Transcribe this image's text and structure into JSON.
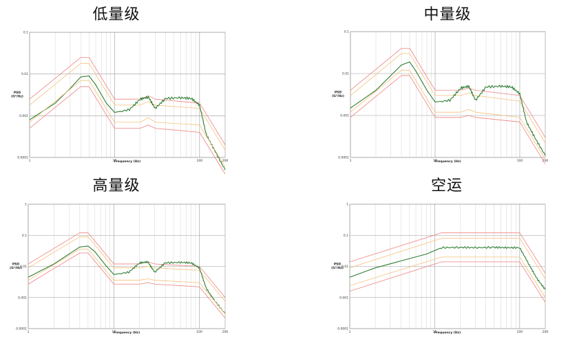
{
  "chart_data": [
    {
      "type": "line",
      "title": "低量级",
      "xlabel": "Frequency (Hz)",
      "ylabel": [
        "PSD",
        "(G²/Hz)"
      ],
      "x_scale": "log",
      "y_scale": "log",
      "xlim": [
        1,
        200
      ],
      "ylim": [
        0.0001,
        0.1
      ],
      "xtick_labels": [
        "1",
        "10",
        "100",
        "200"
      ],
      "ytick_labels": [
        "0.1",
        "0.01",
        "0.001",
        "0.0001"
      ],
      "series": [
        {
          "role": "upper-abort",
          "color": "#f08080",
          "x": [
            1,
            4,
            5,
            10,
            20,
            25,
            30,
            100,
            200
          ],
          "y": [
            0.0025,
            0.025,
            0.025,
            0.0025,
            0.0025,
            0.003,
            0.0025,
            0.002,
            0.0002
          ]
        },
        {
          "role": "upper-alarm",
          "color": "#f5c07a",
          "x": [
            1,
            4,
            5,
            10,
            20,
            25,
            30,
            100,
            200
          ],
          "y": [
            0.0018,
            0.018,
            0.018,
            0.0018,
            0.0018,
            0.0022,
            0.0018,
            0.0015,
            0.00015
          ]
        },
        {
          "role": "profile",
          "color": "#2e7d32",
          "x": [
            1,
            2,
            3,
            4,
            5,
            6,
            8,
            10,
            15,
            20,
            25,
            30,
            40,
            60,
            80,
            100,
            120,
            150,
            200
          ],
          "y": [
            0.0008,
            0.002,
            0.0045,
            0.0085,
            0.009,
            0.0055,
            0.002,
            0.0012,
            0.0014,
            0.0025,
            0.0028,
            0.0015,
            0.0026,
            0.0027,
            0.0026,
            0.0018,
            0.00035,
            0.00015,
            5e-05
          ]
        },
        {
          "role": "lower-alarm",
          "color": "#f5c07a",
          "x": [
            1,
            4,
            5,
            10,
            20,
            25,
            30,
            100,
            200
          ],
          "y": [
            0.0007,
            0.007,
            0.007,
            0.0007,
            0.0007,
            0.0009,
            0.0007,
            0.0006,
            6e-05
          ]
        },
        {
          "role": "lower-abort",
          "color": "#f08080",
          "x": [
            1,
            4,
            5,
            10,
            20,
            25,
            30,
            100,
            200
          ],
          "y": [
            0.0005,
            0.005,
            0.005,
            0.0005,
            0.0005,
            0.0006,
            0.0005,
            0.0004,
            4e-05
          ]
        }
      ]
    },
    {
      "type": "line",
      "title": "中量级",
      "xlabel": "Frequency (Hz)",
      "ylabel": [
        "PSD",
        "(G²/Hz)"
      ],
      "x_scale": "log",
      "y_scale": "log",
      "xlim": [
        1,
        200
      ],
      "ylim": [
        0.0001,
        0.1
      ],
      "xtick_labels": [
        "1",
        "10",
        "100",
        "200"
      ],
      "ytick_labels": [
        "0.1",
        "0.01",
        "0.001",
        "0.0001"
      ],
      "series": [
        {
          "role": "upper-abort",
          "color": "#f08080",
          "x": [
            1,
            4,
            5,
            10,
            20,
            25,
            30,
            100,
            200
          ],
          "y": [
            0.004,
            0.04,
            0.04,
            0.004,
            0.004,
            0.0045,
            0.004,
            0.003,
            0.0003
          ]
        },
        {
          "role": "upper-alarm",
          "color": "#f5c07a",
          "x": [
            1,
            4,
            5,
            10,
            20,
            25,
            30,
            100,
            200
          ],
          "y": [
            0.003,
            0.03,
            0.03,
            0.003,
            0.003,
            0.0034,
            0.003,
            0.0022,
            0.00022
          ]
        },
        {
          "role": "profile",
          "color": "#2e7d32",
          "x": [
            1,
            2,
            3,
            4,
            5,
            6,
            8,
            10,
            15,
            20,
            25,
            30,
            40,
            60,
            80,
            100,
            120,
            150,
            200
          ],
          "y": [
            0.0015,
            0.004,
            0.009,
            0.016,
            0.019,
            0.011,
            0.004,
            0.0021,
            0.0023,
            0.0045,
            0.005,
            0.0023,
            0.0048,
            0.005,
            0.0048,
            0.0033,
            0.0007,
            0.0003,
            0.00011
          ]
        },
        {
          "role": "lower-alarm",
          "color": "#f5c07a",
          "x": [
            1,
            4,
            5,
            10,
            20,
            25,
            30,
            100,
            200
          ],
          "y": [
            0.0012,
            0.012,
            0.012,
            0.0012,
            0.0012,
            0.0014,
            0.0012,
            0.0009,
            9e-05
          ]
        },
        {
          "role": "lower-abort",
          "color": "#f08080",
          "x": [
            1,
            4,
            5,
            10,
            20,
            25,
            30,
            100,
            200
          ],
          "y": [
            0.0009,
            0.009,
            0.009,
            0.0009,
            0.0009,
            0.001,
            0.0009,
            0.0007,
            7e-05
          ]
        }
      ]
    },
    {
      "type": "line",
      "title": "高量级",
      "xlabel": "Frequency (Hz)",
      "ylabel": [
        "PSD",
        "(G²/Hz)"
      ],
      "x_scale": "log",
      "y_scale": "log",
      "xlim": [
        1,
        200
      ],
      "ylim": [
        0.0001,
        1
      ],
      "xtick_labels": [
        "1",
        "10",
        "100",
        "200"
      ],
      "ytick_labels": [
        "1",
        "0.1",
        "0.01",
        "0.001",
        "0.0001"
      ],
      "series": [
        {
          "role": "upper-abort",
          "color": "#f08080",
          "x": [
            1,
            4,
            5,
            10,
            20,
            25,
            30,
            100,
            200
          ],
          "y": [
            0.012,
            0.12,
            0.12,
            0.012,
            0.012,
            0.014,
            0.012,
            0.01,
            0.001
          ]
        },
        {
          "role": "upper-alarm",
          "color": "#f5c07a",
          "x": [
            1,
            4,
            5,
            10,
            20,
            25,
            30,
            100,
            200
          ],
          "y": [
            0.009,
            0.09,
            0.09,
            0.009,
            0.009,
            0.01,
            0.009,
            0.0075,
            0.00075
          ]
        },
        {
          "role": "profile",
          "color": "#2e7d32",
          "x": [
            1,
            2,
            3,
            4,
            5,
            6,
            8,
            10,
            15,
            20,
            25,
            30,
            40,
            60,
            80,
            100,
            120,
            150,
            200
          ],
          "y": [
            0.0045,
            0.012,
            0.025,
            0.042,
            0.045,
            0.03,
            0.011,
            0.0055,
            0.0065,
            0.013,
            0.014,
            0.0065,
            0.013,
            0.0135,
            0.013,
            0.009,
            0.002,
            0.0008,
            0.0003
          ]
        },
        {
          "role": "lower-alarm",
          "color": "#f5c07a",
          "x": [
            1,
            4,
            5,
            10,
            20,
            25,
            30,
            100,
            200
          ],
          "y": [
            0.0036,
            0.036,
            0.036,
            0.0036,
            0.0036,
            0.004,
            0.0036,
            0.003,
            0.0003
          ]
        },
        {
          "role": "lower-abort",
          "color": "#f08080",
          "x": [
            1,
            4,
            5,
            10,
            20,
            25,
            30,
            100,
            200
          ],
          "y": [
            0.0027,
            0.027,
            0.027,
            0.0027,
            0.0027,
            0.003,
            0.0027,
            0.0022,
            0.00022
          ]
        }
      ]
    },
    {
      "type": "line",
      "title": "空运",
      "xlabel": "Frequency (Hz)",
      "ylabel": [
        "PSD",
        "(G²/Hz)"
      ],
      "x_scale": "log",
      "y_scale": "log",
      "xlim": [
        1,
        200
      ],
      "ylim": [
        0.0001,
        1
      ],
      "xtick_labels": [
        "1",
        "10",
        "100",
        "200"
      ],
      "ytick_labels": [
        "1",
        "0.1",
        "0.01",
        "0.001",
        "0.0001"
      ],
      "series": [
        {
          "role": "upper-abort",
          "color": "#f08080",
          "x": [
            1,
            12,
            100,
            200
          ],
          "y": [
            0.014,
            0.12,
            0.12,
            0.006
          ]
        },
        {
          "role": "upper-alarm",
          "color": "#f5c07a",
          "x": [
            1,
            12,
            100,
            200
          ],
          "y": [
            0.009,
            0.08,
            0.08,
            0.004
          ]
        },
        {
          "role": "profile",
          "color": "#2e7d32",
          "x": [
            1,
            2,
            4,
            8,
            12,
            20,
            30,
            50,
            70,
            100,
            130,
            160,
            200
          ],
          "y": [
            0.0045,
            0.009,
            0.015,
            0.025,
            0.04,
            0.041,
            0.04,
            0.041,
            0.04,
            0.04,
            0.011,
            0.004,
            0.0018
          ]
        },
        {
          "role": "lower-alarm",
          "color": "#f5c07a",
          "x": [
            1,
            12,
            100,
            200
          ],
          "y": [
            0.0024,
            0.02,
            0.02,
            0.001
          ]
        },
        {
          "role": "lower-abort",
          "color": "#f08080",
          "x": [
            1,
            12,
            100,
            200
          ],
          "y": [
            0.0016,
            0.014,
            0.014,
            0.0007
          ]
        }
      ]
    }
  ]
}
